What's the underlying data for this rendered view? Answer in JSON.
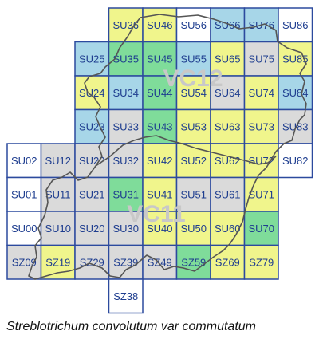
{
  "colors": {
    "green": "#7fdc9a",
    "yellow": "#f0f58c",
    "blue": "#a7d6e8",
    "grey": "#dadada",
    "white": "#ffffff",
    "grid_border": "#2c4a9e",
    "label_text": "#1e3d8f",
    "boundary_line": "#555555",
    "vc_label": "#c8c8c8"
  },
  "vice_county_labels": [
    "VC12",
    "VC11"
  ],
  "caption": "Streblotrichum convolutum var commutatum",
  "squares": [
    {
      "label": "SU36",
      "col": 3,
      "row": 0,
      "status": "yellow"
    },
    {
      "label": "SU46",
      "col": 4,
      "row": 0,
      "status": "yellow"
    },
    {
      "label": "SU56",
      "col": 5,
      "row": 0,
      "status": "white"
    },
    {
      "label": "SU66",
      "col": 6,
      "row": 0,
      "status": "blue"
    },
    {
      "label": "SU76",
      "col": 7,
      "row": 0,
      "status": "blue"
    },
    {
      "label": "SU86",
      "col": 8,
      "row": 0,
      "status": "white"
    },
    {
      "label": "SU25",
      "col": 2,
      "row": 1,
      "status": "blue"
    },
    {
      "label": "SU35",
      "col": 3,
      "row": 1,
      "status": "green"
    },
    {
      "label": "SU45",
      "col": 4,
      "row": 1,
      "status": "green"
    },
    {
      "label": "SU55",
      "col": 5,
      "row": 1,
      "status": "blue"
    },
    {
      "label": "SU65",
      "col": 6,
      "row": 1,
      "status": "yellow"
    },
    {
      "label": "SU75",
      "col": 7,
      "row": 1,
      "status": "grey"
    },
    {
      "label": "SU85",
      "col": 8,
      "row": 1,
      "status": "yellow"
    },
    {
      "label": "SU24",
      "col": 2,
      "row": 2,
      "status": "yellow"
    },
    {
      "label": "SU34",
      "col": 3,
      "row": 2,
      "status": "blue"
    },
    {
      "label": "SU44",
      "col": 4,
      "row": 2,
      "status": "green"
    },
    {
      "label": "SU54",
      "col": 5,
      "row": 2,
      "status": "yellow"
    },
    {
      "label": "SU64",
      "col": 6,
      "row": 2,
      "status": "grey"
    },
    {
      "label": "SU74",
      "col": 7,
      "row": 2,
      "status": "yellow"
    },
    {
      "label": "SU84",
      "col": 8,
      "row": 2,
      "status": "blue"
    },
    {
      "label": "SU23",
      "col": 2,
      "row": 3,
      "status": "blue"
    },
    {
      "label": "SU33",
      "col": 3,
      "row": 3,
      "status": "grey"
    },
    {
      "label": "SU43",
      "col": 4,
      "row": 3,
      "status": "green"
    },
    {
      "label": "SU53",
      "col": 5,
      "row": 3,
      "status": "yellow"
    },
    {
      "label": "SU63",
      "col": 6,
      "row": 3,
      "status": "yellow"
    },
    {
      "label": "SU73",
      "col": 7,
      "row": 3,
      "status": "yellow"
    },
    {
      "label": "SU83",
      "col": 8,
      "row": 3,
      "status": "grey"
    },
    {
      "label": "SU02",
      "col": 0,
      "row": 4,
      "status": "white"
    },
    {
      "label": "SU12",
      "col": 1,
      "row": 4,
      "status": "grey"
    },
    {
      "label": "SU22",
      "col": 2,
      "row": 4,
      "status": "grey"
    },
    {
      "label": "SU32",
      "col": 3,
      "row": 4,
      "status": "grey"
    },
    {
      "label": "SU42",
      "col": 4,
      "row": 4,
      "status": "yellow"
    },
    {
      "label": "SU52",
      "col": 5,
      "row": 4,
      "status": "yellow"
    },
    {
      "label": "SU62",
      "col": 6,
      "row": 4,
      "status": "yellow"
    },
    {
      "label": "SU72",
      "col": 7,
      "row": 4,
      "status": "yellow"
    },
    {
      "label": "SU82",
      "col": 8,
      "row": 4,
      "status": "white"
    },
    {
      "label": "SU01",
      "col": 0,
      "row": 5,
      "status": "white"
    },
    {
      "label": "SU11",
      "col": 1,
      "row": 5,
      "status": "grey"
    },
    {
      "label": "SU21",
      "col": 2,
      "row": 5,
      "status": "grey"
    },
    {
      "label": "SU31",
      "col": 3,
      "row": 5,
      "status": "green"
    },
    {
      "label": "SU41",
      "col": 4,
      "row": 5,
      "status": "yellow"
    },
    {
      "label": "SU51",
      "col": 5,
      "row": 5,
      "status": "grey"
    },
    {
      "label": "SU61",
      "col": 6,
      "row": 5,
      "status": "grey"
    },
    {
      "label": "SU71",
      "col": 7,
      "row": 5,
      "status": "yellow"
    },
    {
      "label": "SU00",
      "col": 0,
      "row": 6,
      "status": "white"
    },
    {
      "label": "SU10",
      "col": 1,
      "row": 6,
      "status": "grey"
    },
    {
      "label": "SU20",
      "col": 2,
      "row": 6,
      "status": "grey"
    },
    {
      "label": "SU30",
      "col": 3,
      "row": 6,
      "status": "grey"
    },
    {
      "label": "SU40",
      "col": 4,
      "row": 6,
      "status": "yellow"
    },
    {
      "label": "SU50",
      "col": 5,
      "row": 6,
      "status": "yellow"
    },
    {
      "label": "SU60",
      "col": 6,
      "row": 6,
      "status": "yellow"
    },
    {
      "label": "SU70",
      "col": 7,
      "row": 6,
      "status": "green"
    },
    {
      "label": "SZ09",
      "col": 0,
      "row": 7,
      "status": "grey"
    },
    {
      "label": "SZ19",
      "col": 1,
      "row": 7,
      "status": "yellow"
    },
    {
      "label": "SZ29",
      "col": 2,
      "row": 7,
      "status": "grey"
    },
    {
      "label": "SZ39",
      "col": 3,
      "row": 7,
      "status": "grey"
    },
    {
      "label": "SZ49",
      "col": 4,
      "row": 7,
      "status": "grey"
    },
    {
      "label": "SZ59",
      "col": 5,
      "row": 7,
      "status": "green"
    },
    {
      "label": "SZ69",
      "col": 6,
      "row": 7,
      "status": "yellow"
    },
    {
      "label": "SZ79",
      "col": 7,
      "row": 7,
      "status": "yellow"
    },
    {
      "label": "SZ38",
      "col": 3,
      "row": 8,
      "status": "white"
    }
  ]
}
